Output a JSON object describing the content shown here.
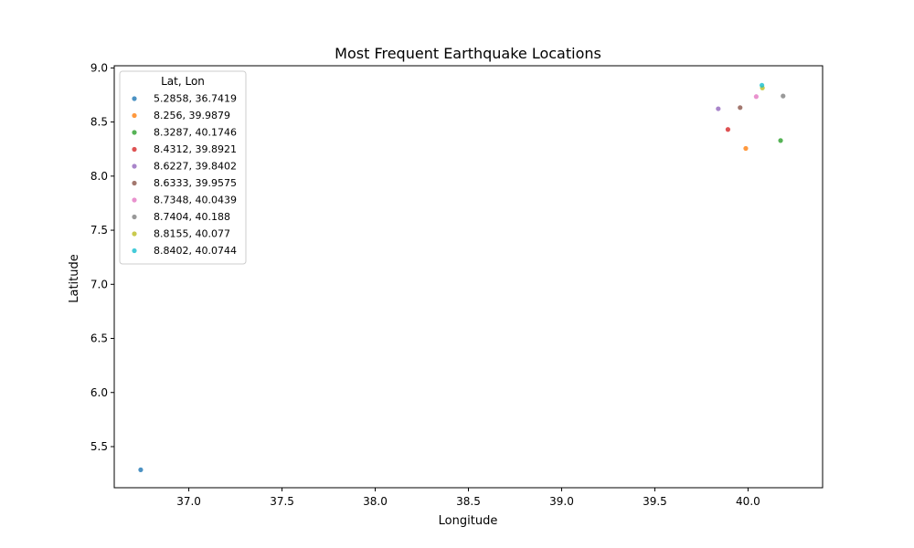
{
  "chart_data": {
    "type": "scatter",
    "title": "Most Frequent Earthquake Locations",
    "xlabel": "Longitude",
    "ylabel": "Latitude",
    "xlim": [
      36.6,
      40.4
    ],
    "ylim": [
      5.12,
      9.02
    ],
    "x_ticks": [
      37.0,
      37.5,
      38.0,
      38.5,
      39.0,
      39.5,
      40.0
    ],
    "x_tick_labels": [
      "37.0",
      "37.5",
      "38.0",
      "38.5",
      "39.0",
      "39.5",
      "40.0"
    ],
    "y_ticks": [
      5.5,
      6.0,
      6.5,
      7.0,
      7.5,
      8.0,
      8.5,
      9.0
    ],
    "y_tick_labels": [
      "5.5",
      "6.0",
      "6.5",
      "7.0",
      "7.5",
      "8.0",
      "8.5",
      "9.0"
    ],
    "grid": false,
    "legend": {
      "title": "Lat, Lon",
      "placement": "top-left"
    },
    "series": [
      {
        "name": "5.2858, 36.7419",
        "color": "#1f77b4",
        "x": [
          36.7419
        ],
        "y": [
          5.2858
        ]
      },
      {
        "name": "8.256, 39.9879",
        "color": "#ff7f0e",
        "x": [
          39.9879
        ],
        "y": [
          8.256
        ]
      },
      {
        "name": "8.3287, 40.1746",
        "color": "#2ca02c",
        "x": [
          40.1746
        ],
        "y": [
          8.3287
        ]
      },
      {
        "name": "8.4312, 39.8921",
        "color": "#d62728",
        "x": [
          39.8921
        ],
        "y": [
          8.4312
        ]
      },
      {
        "name": "8.6227, 39.8402",
        "color": "#9467bd",
        "x": [
          39.8402
        ],
        "y": [
          8.6227
        ]
      },
      {
        "name": "8.6333, 39.9575",
        "color": "#8c564b",
        "x": [
          39.9575
        ],
        "y": [
          8.6333
        ]
      },
      {
        "name": "8.7348, 40.0439",
        "color": "#e377c2",
        "x": [
          40.0439
        ],
        "y": [
          8.7348
        ]
      },
      {
        "name": "8.7404, 40.188",
        "color": "#7f7f7f",
        "x": [
          40.188
        ],
        "y": [
          8.7404
        ]
      },
      {
        "name": "8.8155, 40.077",
        "color": "#bcbd22",
        "x": [
          40.077
        ],
        "y": [
          8.8155
        ]
      },
      {
        "name": "8.8402, 40.0744",
        "color": "#17becf",
        "x": [
          40.0744
        ],
        "y": [
          8.8402
        ]
      }
    ]
  }
}
